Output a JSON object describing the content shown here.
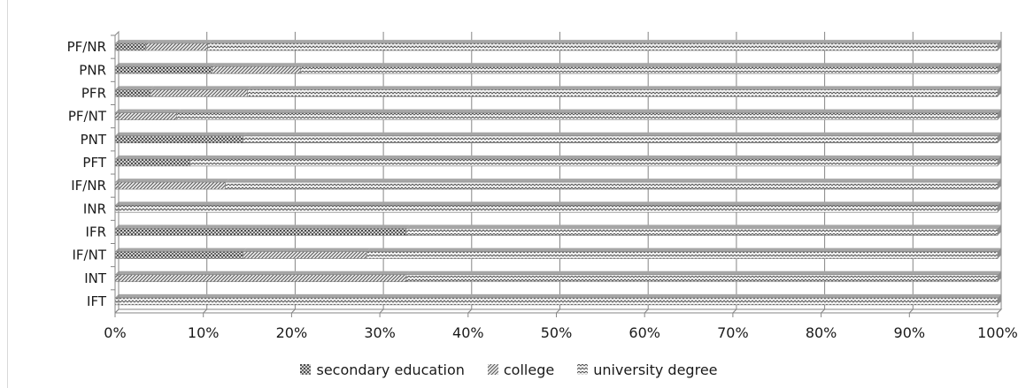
{
  "chart_data": {
    "type": "bar",
    "orientation": "horizontal",
    "stacked": "percent",
    "title": "",
    "xlabel": "",
    "ylabel": "",
    "xlim": [
      0,
      100
    ],
    "x_ticks": [
      "0%",
      "10%",
      "20%",
      "30%",
      "40%",
      "50%",
      "60%",
      "70%",
      "80%",
      "90%",
      "100%"
    ],
    "grid": "vertical",
    "legend_position": "bottom",
    "categories": [
      "PF/NR",
      "PNR",
      "PFR",
      "PF/NT",
      "PNT",
      "PFT",
      "IF/NR",
      "INR",
      "IFR",
      "IF/NT",
      "INT",
      "IFT"
    ],
    "series": [
      {
        "name": "secondary education",
        "pattern": "dotted-grid",
        "values": [
          3.5,
          11,
          4,
          0,
          14.5,
          8.5,
          0,
          0,
          33,
          14.5,
          0,
          0
        ]
      },
      {
        "name": "college",
        "pattern": "diagonal-hatch",
        "values": [
          7,
          10,
          11,
          7,
          0,
          0,
          12.5,
          0,
          0,
          14,
          33,
          0
        ]
      },
      {
        "name": "university degree",
        "pattern": "zigzag",
        "values": [
          89.5,
          79,
          85,
          93,
          85.5,
          91.5,
          87.5,
          100,
          67,
          71.5,
          67,
          100
        ]
      }
    ],
    "colors": {
      "axis": "#868686",
      "grid": "#868686",
      "bar_fill": "#a6a6a6",
      "pattern_ink": "#3f3f3f"
    }
  }
}
